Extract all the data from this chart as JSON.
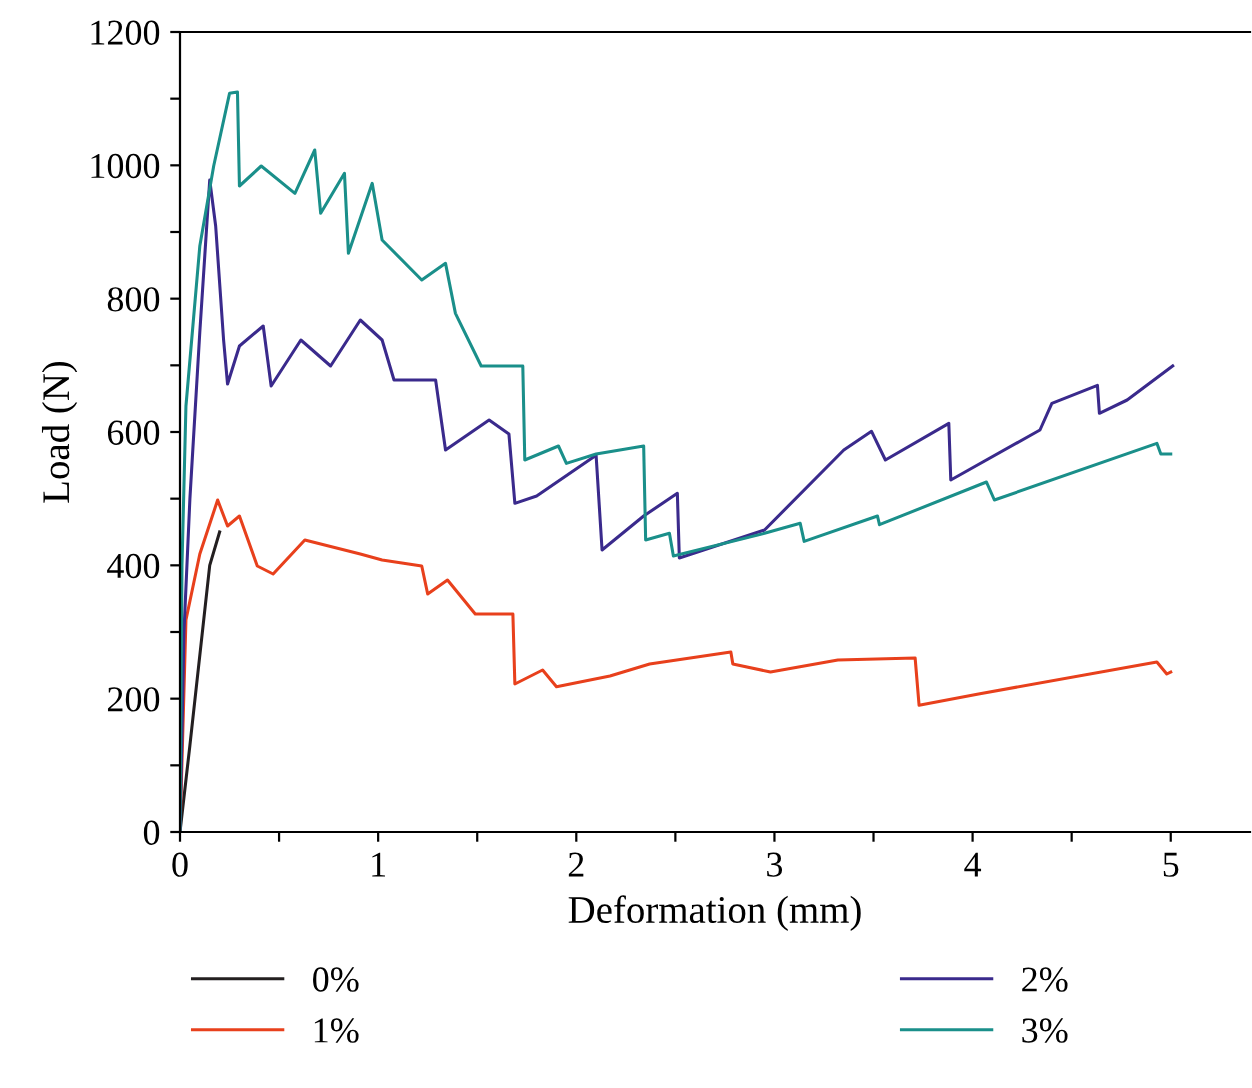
{
  "chart_data": {
    "type": "line",
    "xlabel": "Deformation (mm)",
    "ylabel": "Load (N)",
    "xlim": [
      0,
      5.4
    ],
    "ylim": [
      0,
      1200
    ],
    "xticks": [
      0,
      {
        "value": 0.5,
        "label": null
      },
      1,
      {
        "value": 1.5,
        "label": null
      },
      2,
      {
        "value": 2.5,
        "label": null
      },
      3,
      {
        "value": 3.5,
        "label": null
      },
      4,
      {
        "value": 4.5,
        "label": null
      },
      5
    ],
    "yticks": [
      0,
      {
        "value": 100,
        "label": null
      },
      200,
      {
        "value": 300,
        "label": null
      },
      400,
      {
        "value": 500,
        "label": null
      },
      600,
      {
        "value": 700,
        "label": null
      },
      800,
      {
        "value": 900,
        "label": null
      },
      1000,
      {
        "value": 1100,
        "label": null
      },
      1200
    ],
    "legend": "bottom",
    "grid": false,
    "marker": "none",
    "line_style": "solid",
    "series": [
      {
        "name": "0%",
        "color": "#231f20",
        "x": [
          0,
          0.05,
          0.15,
          0.2
        ],
        "values": [
          0,
          130,
          400,
          450
        ]
      },
      {
        "name": "1%",
        "color": "#e8401c",
        "x": [
          0,
          0.03,
          0.1,
          0.19,
          0.24,
          0.3,
          0.39,
          0.47,
          0.63,
          0.91,
          1.02,
          1.22,
          1.25,
          1.35,
          1.49,
          1.68,
          1.69,
          1.83,
          1.9,
          2.17,
          2.37,
          2.78,
          2.79,
          2.98,
          3.32,
          3.71,
          3.73,
          4.03,
          4.93,
          4.98,
          5.0
        ],
        "values": [
          0,
          318,
          417,
          498,
          459,
          474,
          399,
          387,
          438,
          417,
          408,
          399,
          357,
          378,
          327,
          327,
          222,
          243,
          218,
          234,
          252,
          270,
          252,
          240,
          258,
          261,
          190,
          207,
          255,
          237,
          240
        ]
      },
      {
        "name": "2%",
        "color": "#3a2a8c",
        "x": [
          0,
          0.02,
          0.05,
          0.1,
          0.15,
          0.18,
          0.22,
          0.24,
          0.3,
          0.42,
          0.46,
          0.61,
          0.76,
          0.91,
          1.02,
          1.08,
          1.29,
          1.34,
          1.56,
          1.66,
          1.69,
          1.8,
          2.1,
          2.13,
          2.34,
          2.51,
          2.52,
          2.95,
          3.35,
          3.49,
          3.56,
          3.88,
          3.89,
          4.34,
          4.4,
          4.63,
          4.64,
          4.78,
          5.01
        ],
        "values": [
          0,
          300,
          500,
          750,
          978,
          909,
          738,
          672,
          729,
          759,
          669,
          738,
          699,
          768,
          738,
          678,
          678,
          573,
          618,
          597,
          493,
          504,
          565,
          423,
          474,
          508,
          411,
          453,
          573,
          601,
          558,
          613,
          528,
          603,
          643,
          670,
          628,
          648,
          699
        ]
      },
      {
        "name": "3%",
        "color": "#1a8f8a",
        "x": [
          0,
          0.01,
          0.03,
          0.1,
          0.17,
          0.25,
          0.29,
          0.3,
          0.41,
          0.58,
          0.68,
          0.71,
          0.83,
          0.85,
          0.97,
          1.02,
          1.22,
          1.34,
          1.39,
          1.52,
          1.73,
          1.74,
          1.91,
          1.95,
          2.1,
          2.34,
          2.35,
          2.47,
          2.49,
          2.95,
          3.13,
          3.15,
          3.52,
          3.53,
          4.07,
          4.11,
          4.93,
          4.95,
          5.0
        ],
        "values": [
          0,
          400,
          639,
          879,
          999,
          1108,
          1110,
          969,
          999,
          958,
          1023,
          928,
          988,
          868,
          973,
          888,
          828,
          853,
          778,
          699,
          699,
          558,
          579,
          553,
          567,
          579,
          438,
          448,
          414,
          448,
          463,
          436,
          474,
          461,
          525,
          498,
          583,
          567,
          567
        ]
      }
    ]
  }
}
